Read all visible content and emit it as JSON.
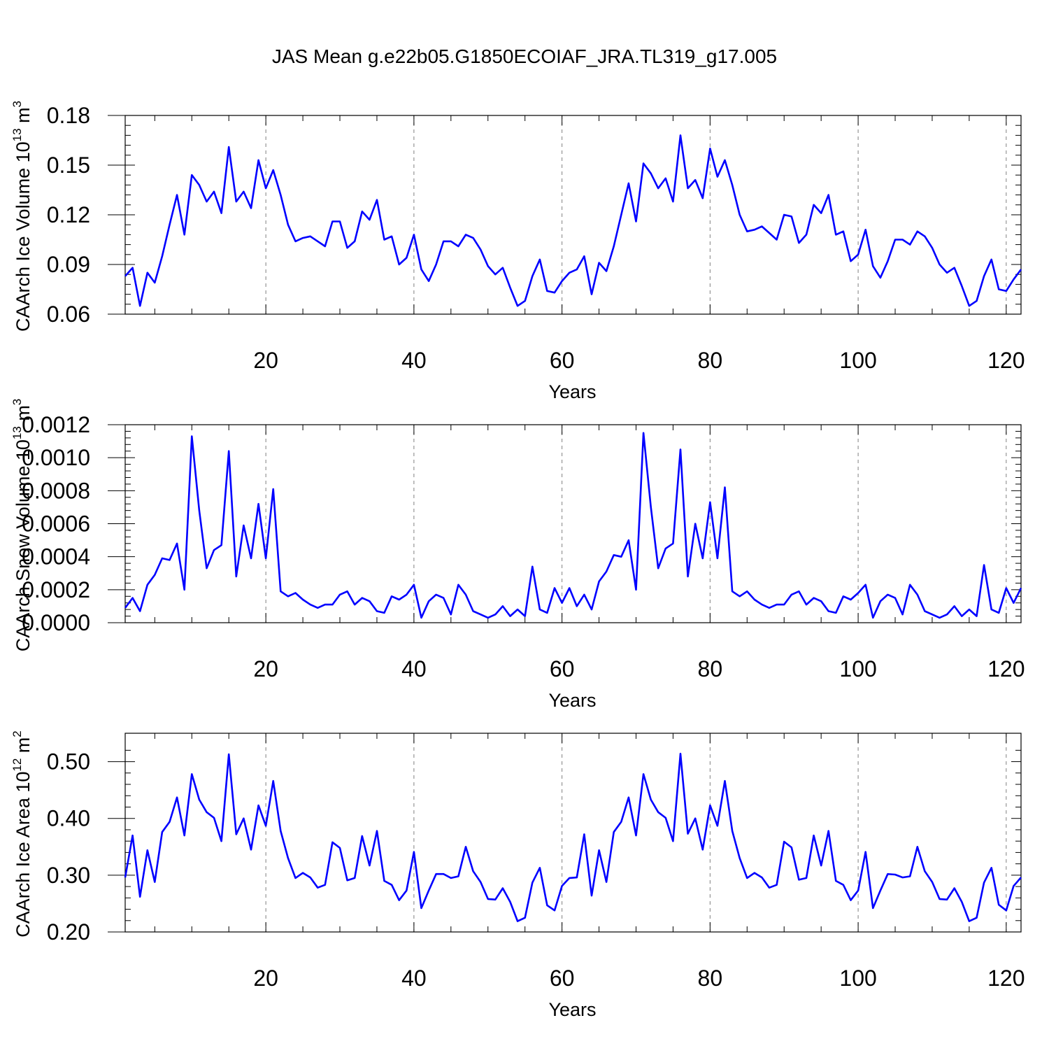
{
  "figure_title": "JAS Mean g.e22b05.G1850ECOIAF_JRA.TL319_g17.005",
  "line_color": "#0000ff",
  "grid_color": "#808080",
  "chart_data": [
    {
      "type": "line",
      "ylabel": "CAArch Ice Volume 10",
      "ylabel_exp": "13",
      "ylabel_unit": " m",
      "ylabel_unit_exp": "3",
      "xlabel": "Years",
      "xlim": [
        1,
        122
      ],
      "ylim": [
        0.06,
        0.18
      ],
      "xticks": [
        20,
        40,
        60,
        80,
        100,
        120
      ],
      "xtick_labels": [
        "20",
        "40",
        "60",
        "80",
        "100",
        "120"
      ],
      "yticks": [
        0.06,
        0.09,
        0.12,
        0.15,
        0.18
      ],
      "ytick_labels": [
        "0.06",
        "0.09",
        "0.12",
        "0.15",
        "0.18"
      ],
      "values": [
        0.083,
        0.088,
        0.065,
        0.085,
        0.079,
        0.095,
        0.114,
        0.132,
        0.108,
        0.144,
        0.138,
        0.128,
        0.134,
        0.121,
        0.161,
        0.128,
        0.134,
        0.124,
        0.153,
        0.136,
        0.147,
        0.132,
        0.114,
        0.104,
        0.106,
        0.107,
        0.104,
        0.101,
        0.116,
        0.116,
        0.1,
        0.104,
        0.122,
        0.117,
        0.129,
        0.105,
        0.107,
        0.09,
        0.094,
        0.108,
        0.087,
        0.08,
        0.09,
        0.104,
        0.104,
        0.101,
        0.108,
        0.106,
        0.099,
        0.089,
        0.084,
        0.088,
        0.076,
        0.065,
        0.068,
        0.083,
        0.093,
        0.074,
        0.073,
        0.08,
        0.085,
        0.087,
        0.095,
        0.072,
        0.091,
        0.086,
        0.101,
        0.12,
        0.139,
        0.116,
        0.151,
        0.145,
        0.136,
        0.142,
        0.128,
        0.168,
        0.136,
        0.141,
        0.13,
        0.16,
        0.143,
        0.153,
        0.138,
        0.12,
        0.11,
        0.111,
        0.113,
        0.109,
        0.105,
        0.12,
        0.119,
        0.103,
        0.108,
        0.126,
        0.121,
        0.132,
        0.108,
        0.11,
        0.092,
        0.096,
        0.111,
        0.089,
        0.082,
        0.092,
        0.105,
        0.105,
        0.102,
        0.11,
        0.107,
        0.1,
        0.09,
        0.085,
        0.088,
        0.077,
        0.065,
        0.068,
        0.083,
        0.093,
        0.075,
        0.074,
        0.081,
        0.087
      ]
    },
    {
      "type": "line",
      "ylabel": "CAArch Snow Volume 10",
      "ylabel_exp": "13",
      "ylabel_unit": " m",
      "ylabel_unit_exp": "3",
      "xlabel": "Years",
      "xlim": [
        1,
        122
      ],
      "ylim": [
        0.0,
        0.0012
      ],
      "xticks": [
        20,
        40,
        60,
        80,
        100,
        120
      ],
      "xtick_labels": [
        "20",
        "40",
        "60",
        "80",
        "100",
        "120"
      ],
      "yticks": [
        0.0,
        0.0002,
        0.0004,
        0.0006,
        0.0008,
        0.001,
        0.0012
      ],
      "ytick_labels": [
        "0.0000",
        "0.0002",
        "0.0004",
        "0.0006",
        "0.0008",
        "0.0010",
        "0.0012"
      ],
      "values": [
        9e-05,
        0.00015,
        7e-05,
        0.00023,
        0.00029,
        0.00039,
        0.00038,
        0.00048,
        0.0002,
        0.00113,
        0.00068,
        0.00033,
        0.00044,
        0.00047,
        0.00104,
        0.00028,
        0.00059,
        0.00039,
        0.00072,
        0.00039,
        0.00081,
        0.00019,
        0.00016,
        0.00018,
        0.00014,
        0.00011,
        9e-05,
        0.00011,
        0.00011,
        0.00017,
        0.00019,
        0.00011,
        0.00015,
        0.00013,
        7e-05,
        6e-05,
        0.00016,
        0.00014,
        0.00017,
        0.00023,
        3e-05,
        0.00013,
        0.00017,
        0.00015,
        5e-05,
        0.00023,
        0.00017,
        7e-05,
        5e-05,
        3e-05,
        5e-05,
        0.0001,
        4e-05,
        8e-05,
        4e-05,
        0.00034,
        8e-05,
        6e-05,
        0.00021,
        0.00012,
        0.00021,
        0.0001,
        0.00017,
        8e-05,
        0.00025,
        0.00031,
        0.00041,
        0.0004,
        0.0005,
        0.0002,
        0.00115,
        0.0007,
        0.00033,
        0.00045,
        0.00048,
        0.00105,
        0.00028,
        0.0006,
        0.00039,
        0.00073,
        0.00039,
        0.00082,
        0.00019,
        0.00016,
        0.00019,
        0.00014,
        0.00011,
        9e-05,
        0.00011,
        0.00011,
        0.00017,
        0.00019,
        0.00011,
        0.00015,
        0.00013,
        7e-05,
        6e-05,
        0.00016,
        0.00014,
        0.00018,
        0.00023,
        3e-05,
        0.00013,
        0.00017,
        0.00015,
        5e-05,
        0.00023,
        0.00017,
        7e-05,
        5e-05,
        3e-05,
        5e-05,
        0.0001,
        4e-05,
        8e-05,
        4e-05,
        0.00035,
        8e-05,
        6e-05,
        0.00021,
        0.00012,
        0.00021
      ]
    },
    {
      "type": "line",
      "ylabel": "CAArch Ice Area 10",
      "ylabel_exp": "12",
      "ylabel_unit": " m",
      "ylabel_unit_exp": "2",
      "xlabel": "Years",
      "xlim": [
        1,
        122
      ],
      "ylim": [
        0.2,
        0.55
      ],
      "xticks": [
        20,
        40,
        60,
        80,
        100,
        120
      ],
      "xtick_labels": [
        "20",
        "40",
        "60",
        "80",
        "100",
        "120"
      ],
      "yticks": [
        0.2,
        0.3,
        0.4,
        0.5
      ],
      "ytick_labels": [
        "0.20",
        "0.30",
        "0.40",
        "0.50"
      ],
      "values": [
        0.296,
        0.37,
        0.262,
        0.344,
        0.288,
        0.376,
        0.394,
        0.437,
        0.37,
        0.478,
        0.433,
        0.411,
        0.401,
        0.36,
        0.513,
        0.372,
        0.4,
        0.345,
        0.423,
        0.387,
        0.466,
        0.378,
        0.33,
        0.295,
        0.304,
        0.296,
        0.278,
        0.283,
        0.358,
        0.348,
        0.291,
        0.295,
        0.369,
        0.317,
        0.378,
        0.29,
        0.283,
        0.256,
        0.273,
        0.341,
        0.242,
        0.273,
        0.302,
        0.302,
        0.295,
        0.298,
        0.35,
        0.307,
        0.288,
        0.258,
        0.257,
        0.277,
        0.253,
        0.219,
        0.225,
        0.287,
        0.313,
        0.247,
        0.238,
        0.281,
        0.295,
        0.296,
        0.372,
        0.264,
        0.344,
        0.288,
        0.376,
        0.394,
        0.437,
        0.37,
        0.478,
        0.433,
        0.411,
        0.401,
        0.36,
        0.514,
        0.373,
        0.4,
        0.345,
        0.423,
        0.387,
        0.466,
        0.378,
        0.33,
        0.295,
        0.304,
        0.296,
        0.278,
        0.283,
        0.359,
        0.349,
        0.292,
        0.295,
        0.37,
        0.317,
        0.378,
        0.29,
        0.283,
        0.256,
        0.273,
        0.341,
        0.242,
        0.273,
        0.302,
        0.301,
        0.296,
        0.298,
        0.35,
        0.307,
        0.288,
        0.258,
        0.257,
        0.277,
        0.253,
        0.219,
        0.225,
        0.287,
        0.313,
        0.248,
        0.238,
        0.281,
        0.296
      ]
    }
  ]
}
